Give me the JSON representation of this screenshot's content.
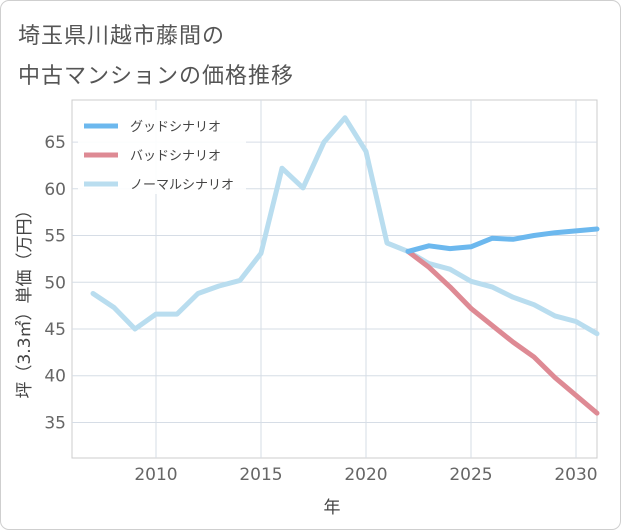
{
  "title_line1": "埼玉県川越市藤間の",
  "title_line2": "中古マンションの価格推移",
  "chart_data": {
    "type": "line",
    "xlabel": "年",
    "ylabel": "坪（3.3㎡）単価（万円）",
    "xlim": [
      2006,
      2031
    ],
    "ylim": [
      31.2,
      69.5
    ],
    "xticks": [
      2010,
      2015,
      2020,
      2025,
      2030
    ],
    "yticks": [
      35,
      40,
      45,
      50,
      55,
      60,
      65
    ],
    "grid": true,
    "legend_position": "top-left",
    "series": [
      {
        "name": "グッドシナリオ",
        "color": "#6cb8ee",
        "x": [
          2022,
          2023,
          2024,
          2025,
          2026,
          2027,
          2028,
          2029,
          2030,
          2031
        ],
        "y": [
          53.3,
          53.9,
          53.6,
          53.8,
          54.7,
          54.6,
          55.0,
          55.3,
          55.5,
          55.7
        ]
      },
      {
        "name": "バッドシナリオ",
        "color": "#de8a94",
        "x": [
          2022,
          2023,
          2024,
          2025,
          2026,
          2027,
          2028,
          2029,
          2030,
          2031
        ],
        "y": [
          53.3,
          51.6,
          49.5,
          47.2,
          45.4,
          43.6,
          42.0,
          39.8,
          37.9,
          36.0
        ]
      },
      {
        "name": "ノーマルシナリオ",
        "color": "#b9ddef",
        "x": [
          2007,
          2008,
          2009,
          2010,
          2011,
          2012,
          2013,
          2014,
          2015,
          2016,
          2017,
          2018,
          2019,
          2020,
          2021,
          2022,
          2023,
          2024,
          2025,
          2026,
          2027,
          2028,
          2029,
          2030,
          2031
        ],
        "y": [
          48.8,
          47.3,
          45.0,
          46.6,
          46.6,
          48.8,
          49.6,
          50.2,
          53.1,
          62.2,
          60.1,
          65.0,
          67.6,
          64.0,
          54.2,
          53.3,
          52.0,
          51.4,
          50.1,
          49.5,
          48.4,
          47.6,
          46.4,
          45.8,
          44.5
        ]
      }
    ]
  }
}
